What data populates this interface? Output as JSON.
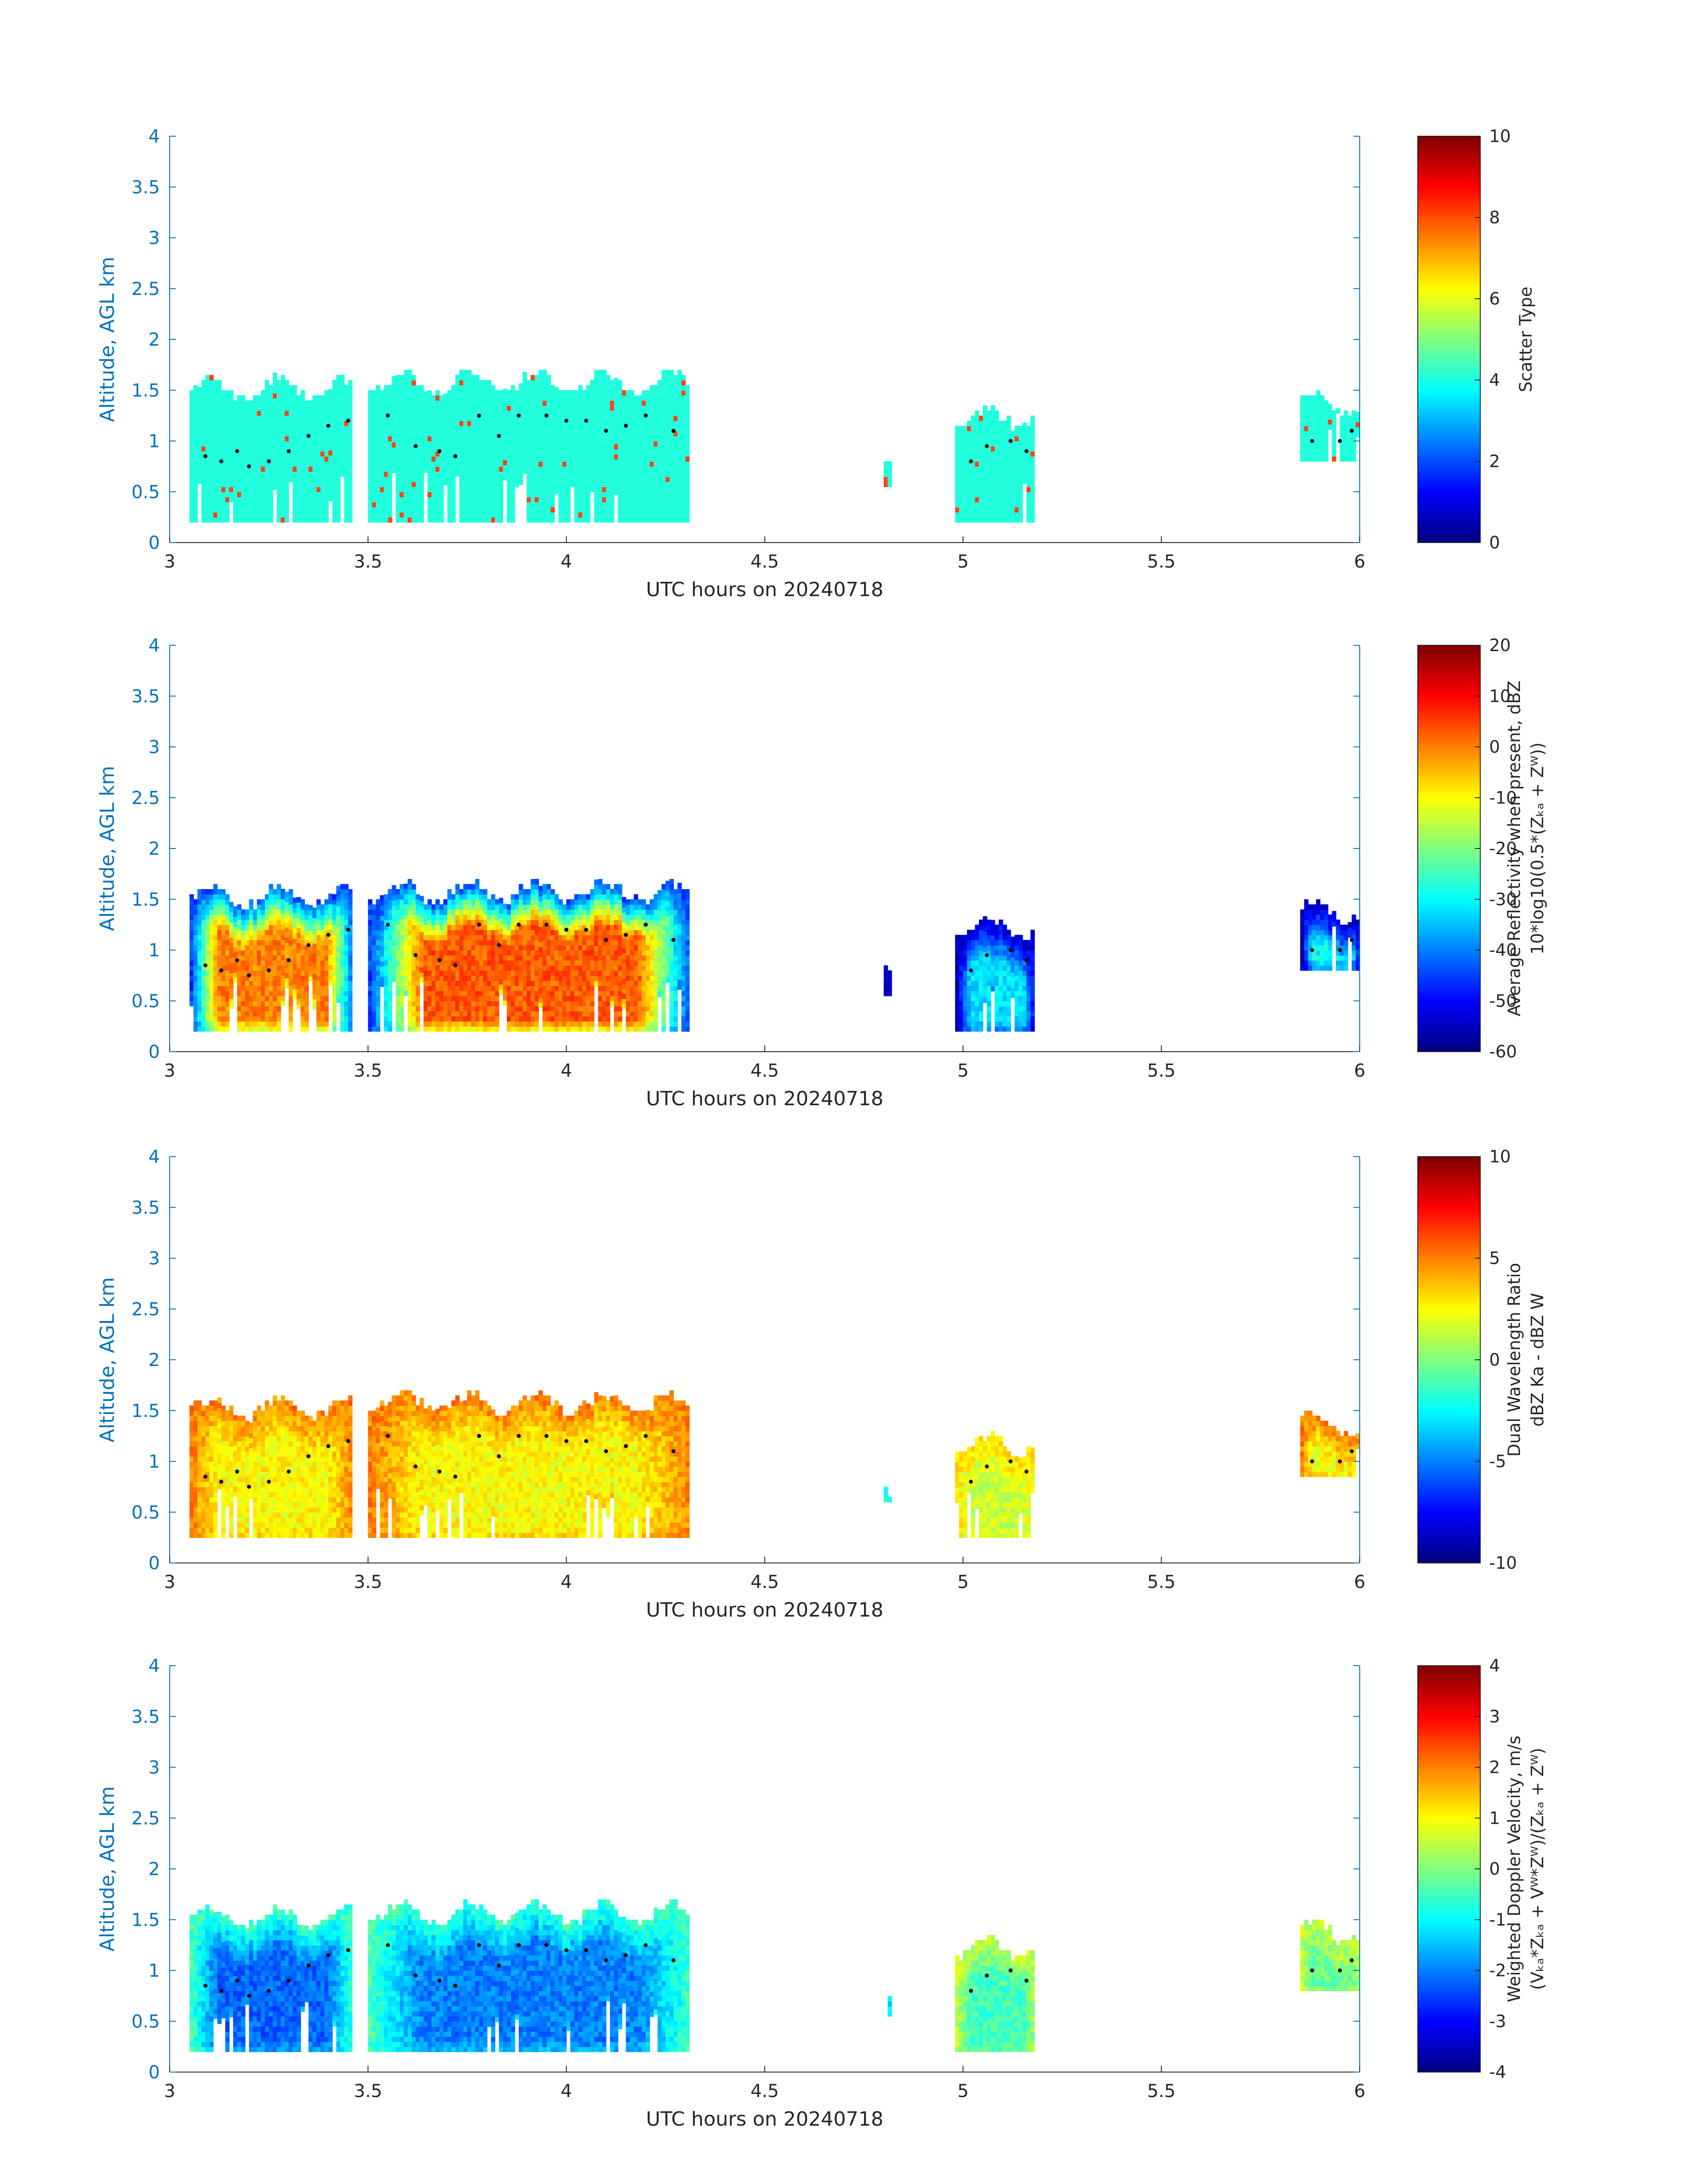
{
  "palette": {
    "axis": "#262626",
    "left_axis": "#0072BD",
    "colormap": "jet",
    "scatter_type_cells": "#22FFDD",
    "scatter_type_alt": "#FF4411",
    "dots": "#000000"
  },
  "chart_data": [
    {
      "type": "heatmap",
      "name": "scatter-type",
      "xlabel": "UTC hours on 20240718",
      "ylabel": "Altitude, AGL km",
      "xlim": [
        3,
        6
      ],
      "ylim": [
        0,
        4
      ],
      "xticks": [
        "3",
        "3.5",
        "4",
        "4.5",
        "5",
        "5.5",
        "6"
      ],
      "yticks": [
        "0",
        "0.5",
        "1",
        "1.5",
        "2",
        "2.5",
        "3",
        "3.5",
        "4"
      ],
      "colorbar": {
        "label_lines": [
          "Scatter Type"
        ],
        "ticks": [
          "0",
          "2",
          "4",
          "6",
          "8",
          "10"
        ],
        "range": [
          0,
          10
        ]
      },
      "segments": [
        {
          "x0": 3.05,
          "x1": 3.46,
          "base": 0.2,
          "top_mean": 1.5,
          "dominant": 4
        },
        {
          "x0": 3.5,
          "x1": 4.31,
          "base": 0.2,
          "top_mean": 1.55,
          "dominant": 4
        },
        {
          "x0": 4.8,
          "x1": 4.82,
          "base": 0.55,
          "top_mean": 0.85,
          "dominant": 4
        },
        {
          "x0": 4.98,
          "x1": 5.18,
          "base": 0.2,
          "top_mean": 1.2,
          "dominant": 4
        },
        {
          "x0": 5.85,
          "x1": 6.0,
          "base": 0.8,
          "top_mean": 1.35,
          "dominant": 4
        }
      ],
      "dots": [
        [
          3.09,
          0.85
        ],
        [
          3.13,
          0.8
        ],
        [
          3.17,
          0.9
        ],
        [
          3.2,
          0.75
        ],
        [
          3.25,
          0.8
        ],
        [
          3.3,
          0.9
        ],
        [
          3.35,
          1.05
        ],
        [
          3.4,
          1.15
        ],
        [
          3.45,
          1.2
        ],
        [
          3.55,
          1.25
        ],
        [
          3.62,
          0.95
        ],
        [
          3.68,
          0.9
        ],
        [
          3.72,
          0.85
        ],
        [
          3.78,
          1.25
        ],
        [
          3.83,
          1.05
        ],
        [
          3.88,
          1.25
        ],
        [
          3.95,
          1.25
        ],
        [
          4.0,
          1.2
        ],
        [
          4.05,
          1.2
        ],
        [
          4.1,
          1.1
        ],
        [
          4.15,
          1.15
        ],
        [
          4.2,
          1.25
        ],
        [
          4.27,
          1.1
        ],
        [
          5.02,
          0.8
        ],
        [
          5.06,
          0.95
        ],
        [
          5.12,
          1.0
        ],
        [
          5.16,
          0.9
        ],
        [
          5.88,
          1.0
        ],
        [
          5.95,
          1.0
        ],
        [
          5.98,
          1.1
        ]
      ]
    },
    {
      "type": "heatmap",
      "name": "reflectivity",
      "xlabel": "UTC hours on 20240718",
      "ylabel": "Altitude, AGL km",
      "xlim": [
        3,
        6
      ],
      "ylim": [
        0,
        4
      ],
      "xticks": [
        "3",
        "3.5",
        "4",
        "4.5",
        "5",
        "5.5",
        "6"
      ],
      "yticks": [
        "0",
        "0.5",
        "1",
        "1.5",
        "2",
        "2.5",
        "3",
        "3.5",
        "4"
      ],
      "colorbar": {
        "label_lines": [
          "Average Reflectivity when present, dBZ",
          "10*log10(0.5*(Zₖₐ + Zᵂ))"
        ],
        "ticks": [
          "-60",
          "-50",
          "-40",
          "-30",
          "-20",
          "-10",
          "0",
          "10",
          "20"
        ],
        "range": [
          -60,
          20
        ]
      },
      "segments": [
        {
          "x0": 3.05,
          "x1": 3.46,
          "base": 0.2,
          "top_mean": 1.5,
          "core": 0,
          "edge": -45
        },
        {
          "x0": 3.5,
          "x1": 4.31,
          "base": 0.2,
          "top_mean": 1.55,
          "core": 3,
          "edge": -45
        },
        {
          "x0": 4.8,
          "x1": 4.82,
          "base": 0.55,
          "top_mean": 0.85,
          "core": -50,
          "edge": -55
        },
        {
          "x0": 4.98,
          "x1": 5.18,
          "base": 0.2,
          "top_mean": 1.2,
          "core": -32,
          "edge": -55
        },
        {
          "x0": 5.85,
          "x1": 6.0,
          "base": 0.8,
          "top_mean": 1.35,
          "core": -30,
          "edge": -55
        }
      ],
      "dots": [
        [
          3.09,
          0.85
        ],
        [
          3.13,
          0.8
        ],
        [
          3.17,
          0.9
        ],
        [
          3.2,
          0.75
        ],
        [
          3.25,
          0.8
        ],
        [
          3.3,
          0.9
        ],
        [
          3.35,
          1.05
        ],
        [
          3.4,
          1.15
        ],
        [
          3.45,
          1.2
        ],
        [
          3.55,
          1.25
        ],
        [
          3.62,
          0.95
        ],
        [
          3.68,
          0.9
        ],
        [
          3.72,
          0.85
        ],
        [
          3.78,
          1.25
        ],
        [
          3.83,
          1.05
        ],
        [
          3.88,
          1.25
        ],
        [
          3.95,
          1.25
        ],
        [
          4.0,
          1.2
        ],
        [
          4.05,
          1.2
        ],
        [
          4.1,
          1.1
        ],
        [
          4.15,
          1.15
        ],
        [
          4.2,
          1.25
        ],
        [
          4.27,
          1.1
        ],
        [
          5.02,
          0.8
        ],
        [
          5.06,
          0.95
        ],
        [
          5.12,
          1.0
        ],
        [
          5.16,
          0.9
        ],
        [
          5.88,
          1.0
        ],
        [
          5.95,
          1.0
        ],
        [
          5.98,
          1.1
        ]
      ]
    },
    {
      "type": "heatmap",
      "name": "dual-wavelength-ratio",
      "xlabel": "UTC hours on 20240718",
      "ylabel": "Altitude, AGL km",
      "xlim": [
        3,
        6
      ],
      "ylim": [
        0,
        4
      ],
      "xticks": [
        "3",
        "3.5",
        "4",
        "4.5",
        "5",
        "5.5",
        "6"
      ],
      "yticks": [
        "0",
        "0.5",
        "1",
        "1.5",
        "2",
        "2.5",
        "3",
        "3.5",
        "4"
      ],
      "colorbar": {
        "label_lines": [
          "Dual Wavelength Ratio",
          "dBZ Ka - dBZ W"
        ],
        "ticks": [
          "-10",
          "-5",
          "0",
          "5",
          "10"
        ],
        "range": [
          -10,
          10
        ]
      },
      "segments": [
        {
          "x0": 3.05,
          "x1": 3.46,
          "base": 0.25,
          "top_mean": 1.5,
          "core": 2.5,
          "edge": 5
        },
        {
          "x0": 3.5,
          "x1": 4.31,
          "base": 0.25,
          "top_mean": 1.55,
          "core": 2.5,
          "edge": 5
        },
        {
          "x0": 4.8,
          "x1": 4.82,
          "base": 0.6,
          "top_mean": 0.75,
          "core": -1,
          "edge": -2
        },
        {
          "x0": 4.98,
          "x1": 5.18,
          "base": 0.25,
          "top_mean": 1.15,
          "core": 1.5,
          "edge": 3
        },
        {
          "x0": 5.85,
          "x1": 6.0,
          "base": 0.85,
          "top_mean": 1.35,
          "core": 2,
          "edge": 5
        }
      ],
      "dots": [
        [
          3.09,
          0.85
        ],
        [
          3.13,
          0.8
        ],
        [
          3.17,
          0.9
        ],
        [
          3.2,
          0.75
        ],
        [
          3.25,
          0.8
        ],
        [
          3.3,
          0.9
        ],
        [
          3.35,
          1.05
        ],
        [
          3.4,
          1.15
        ],
        [
          3.45,
          1.2
        ],
        [
          3.55,
          1.25
        ],
        [
          3.62,
          0.95
        ],
        [
          3.68,
          0.9
        ],
        [
          3.72,
          0.85
        ],
        [
          3.78,
          1.25
        ],
        [
          3.83,
          1.05
        ],
        [
          3.88,
          1.25
        ],
        [
          3.95,
          1.25
        ],
        [
          4.0,
          1.2
        ],
        [
          4.05,
          1.2
        ],
        [
          4.1,
          1.1
        ],
        [
          4.15,
          1.15
        ],
        [
          4.2,
          1.25
        ],
        [
          4.27,
          1.1
        ],
        [
          5.02,
          0.8
        ],
        [
          5.06,
          0.95
        ],
        [
          5.12,
          1.0
        ],
        [
          5.16,
          0.9
        ],
        [
          5.88,
          1.0
        ],
        [
          5.95,
          1.0
        ],
        [
          5.98,
          1.1
        ]
      ]
    },
    {
      "type": "heatmap",
      "name": "doppler-velocity",
      "xlabel": "UTC hours on 20240718",
      "ylabel": "Altitude, AGL km",
      "xlim": [
        3,
        6
      ],
      "ylim": [
        0,
        4
      ],
      "xticks": [
        "3",
        "3.5",
        "4",
        "4.5",
        "5",
        "5.5",
        "6"
      ],
      "yticks": [
        "0",
        "0.5",
        "1",
        "1.5",
        "2",
        "2.5",
        "3",
        "3.5",
        "4"
      ],
      "colorbar": {
        "label_lines": [
          "Weighted Doppler Velocity, m/s",
          "(Vₖₐ*Zₖₐ + Vᵂ*Zᵂ)/(Zₖₐ + Zᵂ)"
        ],
        "ticks": [
          "-4",
          "-3",
          "-2",
          "-1",
          "0",
          "1",
          "2",
          "3",
          "4"
        ],
        "range": [
          -4,
          4
        ]
      },
      "segments": [
        {
          "x0": 3.05,
          "x1": 3.46,
          "base": 0.2,
          "top_mean": 1.5,
          "core": -2.2,
          "edge": -0.5
        },
        {
          "x0": 3.5,
          "x1": 4.31,
          "base": 0.2,
          "top_mean": 1.55,
          "core": -2.0,
          "edge": -0.5
        },
        {
          "x0": 4.8,
          "x1": 4.82,
          "base": 0.55,
          "top_mean": 0.85,
          "core": -1.5,
          "edge": -1
        },
        {
          "x0": 4.98,
          "x1": 5.18,
          "base": 0.2,
          "top_mean": 1.2,
          "core": -0.5,
          "edge": 0.5
        },
        {
          "x0": 5.85,
          "x1": 6.0,
          "base": 0.8,
          "top_mean": 1.35,
          "core": -0.2,
          "edge": 0.5
        }
      ],
      "dots": [
        [
          3.09,
          0.85
        ],
        [
          3.13,
          0.8
        ],
        [
          3.17,
          0.9
        ],
        [
          3.2,
          0.75
        ],
        [
          3.25,
          0.8
        ],
        [
          3.3,
          0.9
        ],
        [
          3.35,
          1.05
        ],
        [
          3.4,
          1.15
        ],
        [
          3.45,
          1.2
        ],
        [
          3.55,
          1.25
        ],
        [
          3.62,
          0.95
        ],
        [
          3.68,
          0.9
        ],
        [
          3.72,
          0.85
        ],
        [
          3.78,
          1.25
        ],
        [
          3.83,
          1.05
        ],
        [
          3.88,
          1.25
        ],
        [
          3.95,
          1.25
        ],
        [
          4.0,
          1.2
        ],
        [
          4.05,
          1.2
        ],
        [
          4.1,
          1.1
        ],
        [
          4.15,
          1.15
        ],
        [
          4.2,
          1.25
        ],
        [
          4.27,
          1.1
        ],
        [
          5.02,
          0.8
        ],
        [
          5.06,
          0.95
        ],
        [
          5.12,
          1.0
        ],
        [
          5.16,
          0.9
        ],
        [
          5.88,
          1.0
        ],
        [
          5.95,
          1.0
        ],
        [
          5.98,
          1.1
        ]
      ]
    }
  ]
}
